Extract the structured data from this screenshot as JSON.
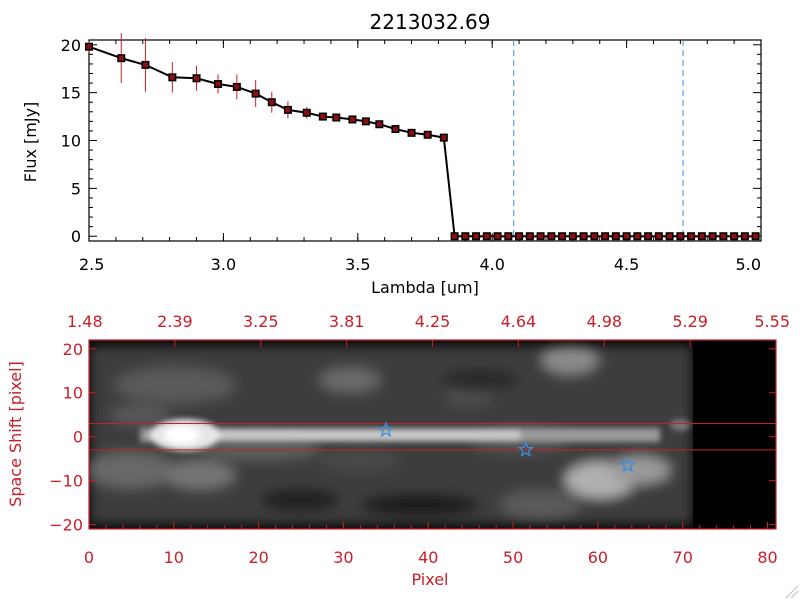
{
  "chart_data": [
    {
      "type": "line",
      "title": "2213032.69",
      "xlabel": "Lambda [um]",
      "ylabel": "Flux [mJy]",
      "xlim": [
        2.5,
        5.0
      ],
      "ylim": [
        -0.5,
        20.5
      ],
      "xticks": [
        "2.5",
        "3.0",
        "3.5",
        "4.0",
        "4.5",
        "5.0"
      ],
      "xtick_values": [
        2.5,
        3.0,
        3.5,
        4.0,
        4.5,
        5.0
      ],
      "yticks": [
        "0",
        "5",
        "10",
        "15",
        "20"
      ],
      "ytick_values": [
        0,
        5,
        10,
        15,
        20
      ],
      "vlines": [
        4.08,
        4.71
      ],
      "series": [
        {
          "name": "flux",
          "x": [
            2.5,
            2.62,
            2.71,
            2.81,
            2.9,
            2.98,
            3.05,
            3.12,
            3.18,
            3.24,
            3.31,
            3.37,
            3.42,
            3.48,
            3.53,
            3.58,
            3.64,
            3.7,
            3.76,
            3.82,
            3.86,
            3.9,
            3.94,
            3.98,
            4.02,
            4.06,
            4.1,
            4.14,
            4.18,
            4.22,
            4.26,
            4.3,
            4.34,
            4.38,
            4.42,
            4.46,
            4.5,
            4.54,
            4.58,
            4.62,
            4.66,
            4.7,
            4.74,
            4.78,
            4.82,
            4.86,
            4.9,
            4.94,
            4.98
          ],
          "y": [
            19.8,
            18.6,
            17.9,
            16.6,
            16.5,
            15.9,
            15.6,
            14.9,
            14.0,
            13.2,
            12.9,
            12.5,
            12.4,
            12.2,
            12.0,
            11.7,
            11.2,
            10.8,
            10.6,
            10.3,
            0,
            0,
            0,
            0,
            0,
            0,
            0,
            0,
            0,
            0,
            0,
            0,
            0,
            0,
            0,
            0,
            0,
            0,
            0,
            0,
            0,
            0,
            0,
            0,
            0,
            0,
            0,
            0,
            0
          ],
          "yerr": [
            0.6,
            2.6,
            2.8,
            1.6,
            1.3,
            1.0,
            1.3,
            1.4,
            1.1,
            0.9,
            0.6,
            0.4,
            0.3,
            0.3,
            0.2,
            0.2,
            0.2,
            0.2,
            0.2,
            0.2,
            0,
            0,
            0,
            0,
            0,
            0,
            0,
            0,
            0,
            0,
            0,
            0,
            0,
            0,
            0,
            0,
            0,
            0,
            0,
            0,
            0,
            0,
            0,
            0,
            0,
            0,
            0,
            0,
            0
          ]
        }
      ]
    },
    {
      "type": "heatmap",
      "xlabel": "Pixel",
      "ylabel": "Space Shift [pixel]",
      "xlim": [
        0,
        81
      ],
      "ylim": [
        -21,
        22
      ],
      "xticks": [
        "0",
        "10",
        "20",
        "30",
        "40",
        "50",
        "60",
        "70",
        "80"
      ],
      "xtick_values": [
        0,
        10,
        20,
        30,
        40,
        50,
        60,
        70,
        80
      ],
      "yticks": [
        "−20",
        "−10",
        "0",
        "10",
        "20"
      ],
      "ytick_values": [
        -20,
        -10,
        0,
        10,
        20
      ],
      "top_ticks": [
        "1.48",
        "2.39",
        "3.25",
        "3.81",
        "4.25",
        "4.64",
        "4.98",
        "5.29",
        "5.55"
      ],
      "hlines": [
        3,
        -3
      ],
      "markers": [
        {
          "x": 35,
          "y": 1.5
        },
        {
          "x": 51.5,
          "y": -3
        },
        {
          "x": 63.5,
          "y": -6.5
        }
      ],
      "colors": {
        "accent": "#c8202a",
        "marker": "#3a8fdc",
        "frame": "#000000"
      }
    }
  ]
}
